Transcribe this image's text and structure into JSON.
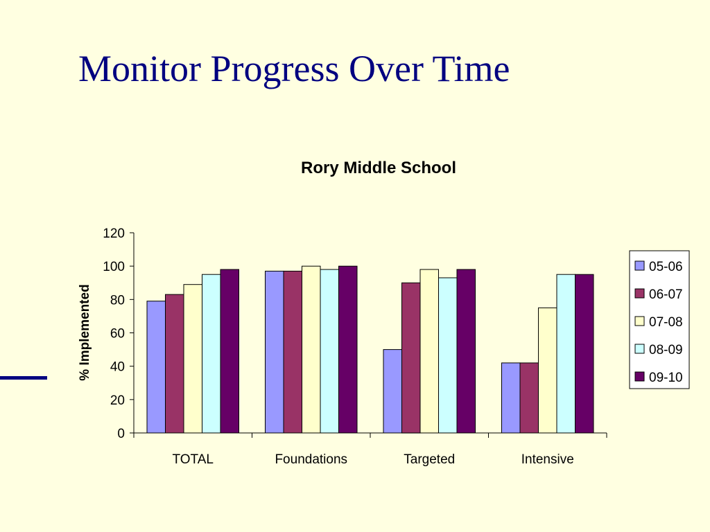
{
  "slide": {
    "title": "Monitor Progress Over Time"
  },
  "chart_data": {
    "type": "bar",
    "title": "Rory Middle School",
    "xlabel": "",
    "ylabel": "% Implemented",
    "ylim": [
      0,
      120
    ],
    "yticks": [
      0,
      20,
      40,
      60,
      80,
      100,
      120
    ],
    "categories": [
      "TOTAL",
      "Foundations",
      "Targeted",
      "Intensive"
    ],
    "series": [
      {
        "name": "05-06",
        "color": "#9999FF",
        "values": [
          79,
          97,
          50,
          42
        ]
      },
      {
        "name": "06-07",
        "color": "#993366",
        "values": [
          83,
          97,
          90,
          42
        ]
      },
      {
        "name": "07-08",
        "color": "#FFFFCC",
        "values": [
          89,
          100,
          98,
          75
        ]
      },
      {
        "name": "08-09",
        "color": "#CCFFFF",
        "values": [
          95,
          98,
          93,
          95
        ]
      },
      {
        "name": "09-10",
        "color": "#660066",
        "values": [
          98,
          100,
          98,
          95
        ]
      }
    ],
    "grid": false,
    "legend_position": "right"
  }
}
